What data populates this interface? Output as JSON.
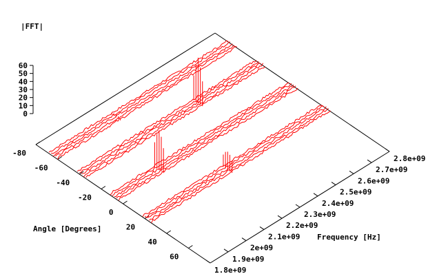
{
  "chart_data": {
    "type": "line",
    "view": "3d-surface-splot",
    "zlabel": "|FFT|",
    "xlabel": "Angle [Degrees]",
    "ylabel": "Frequency [Hz]",
    "z_ticks": [
      "60",
      "50",
      "40",
      "30",
      "20",
      "10",
      "0"
    ],
    "angle_ticks": [
      "-80",
      "-60",
      "-40",
      "-20",
      "0",
      "20",
      "40",
      "60"
    ],
    "freq_ticks": [
      "1.8e+09",
      "1.9e+09",
      "2e+09",
      "2.1e+09",
      "2.2e+09",
      "2.3e+09",
      "2.4e+09",
      "2.5e+09",
      "2.6e+09",
      "2.7e+09",
      "2.8e+09"
    ],
    "angle_range": [
      -80,
      80
    ],
    "freq_range": [
      1800000000,
      2800000000
    ],
    "z_range": [
      0,
      60
    ],
    "groups": [
      {
        "center_angle": -64,
        "angles": [
          -68,
          -66,
          -64,
          -62,
          -60
        ],
        "peak_freq": 2150000000,
        "peak_values": [
          2,
          3,
          4,
          3,
          2
        ]
      },
      {
        "center_angle": -38,
        "angles": [
          -42,
          -40,
          -38,
          -36,
          -34
        ],
        "peak_freq": 2450000000,
        "peak_values": [
          30,
          45,
          55,
          45,
          30
        ]
      },
      {
        "center_angle": -8,
        "angles": [
          -12,
          -10,
          -8,
          -6,
          -4
        ],
        "peak_freq": 2050000000,
        "peak_values": [
          30,
          42,
          48,
          42,
          30
        ]
      },
      {
        "center_angle": 22,
        "angles": [
          18,
          20,
          22,
          24,
          26
        ],
        "peak_freq": 2250000000,
        "peak_values": [
          15,
          20,
          22,
          20,
          15
        ]
      }
    ],
    "noise_level": 1.5,
    "line_color": "#ff0000",
    "grid": false
  }
}
